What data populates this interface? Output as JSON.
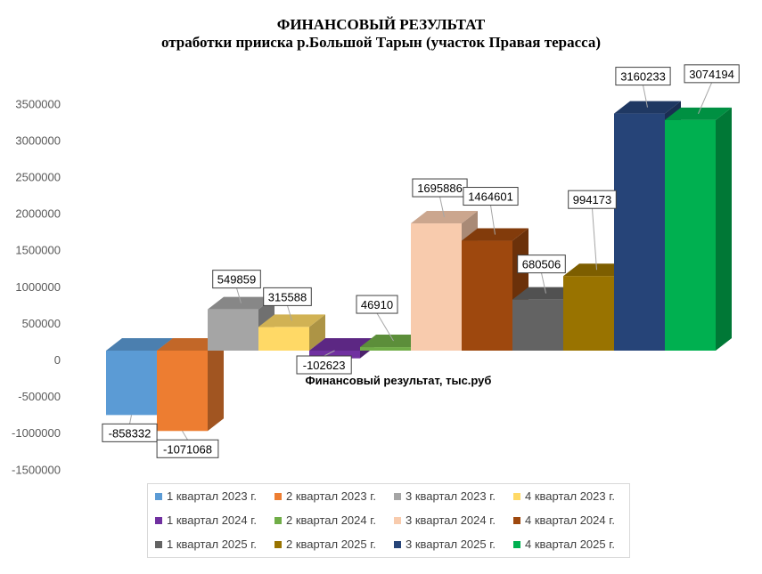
{
  "chart_data": {
    "type": "bar",
    "title": "ФИНАНСОВЫЙ РЕЗУЛЬТАТ",
    "subtitle": "отработки прииска р.Большой Тарын (участок Правая терасса)",
    "xlabel": "Финансовый  результат,  тыс.руб",
    "ylabel": "",
    "ylim": [
      -1500000,
      3500000
    ],
    "yticks": [
      "3500000",
      "3000000",
      "2500000",
      "2000000",
      "1500000",
      "1000000",
      "500000",
      "0",
      "-500000",
      "-1000000",
      "-1500000"
    ],
    "grid": false,
    "legend_position": "bottom",
    "style": "3d-clustered-column",
    "series": [
      {
        "name": "1 квартал 2023 г.",
        "value": -858332,
        "label": "-858332",
        "color": "#5b9bd5"
      },
      {
        "name": "2 квартал 2023 г.",
        "value": -1071068,
        "label": "-1071068",
        "color": "#ed7d31"
      },
      {
        "name": "3 квартал 2023 г.",
        "value": 549859,
        "label": "549859",
        "color": "#a5a5a5"
      },
      {
        "name": "4 квартал 2023 г.",
        "value": 315588,
        "label": "315588",
        "color": "#ffd966"
      },
      {
        "name": "1 квартал 2024 г.",
        "value": -102623,
        "label": "-102623",
        "color": "#7030a0"
      },
      {
        "name": "2 квартал 2024 г.",
        "value": 46910,
        "label": "46910",
        "color": "#70ad47"
      },
      {
        "name": "3 квартал 2024 г.",
        "value": 1695886,
        "label": "1695886",
        "color": "#f8cbad"
      },
      {
        "name": "4 квартал 2024 г.",
        "value": 1464601,
        "label": "1464601",
        "color": "#9e480e"
      },
      {
        "name": "1 квартал 2025 г.",
        "value": 680506,
        "label": "680506",
        "color": "#636363"
      },
      {
        "name": "2 квартал 2025 г.",
        "value": 994173,
        "label": "994173",
        "color": "#997300"
      },
      {
        "name": "3 квартал 2025 г.",
        "value": 3160233,
        "label": "3160233",
        "color": "#264478"
      },
      {
        "name": "4 квартал 2025 г.",
        "value": 3074194,
        "label": "3074194",
        "color": "#00b050"
      }
    ]
  }
}
